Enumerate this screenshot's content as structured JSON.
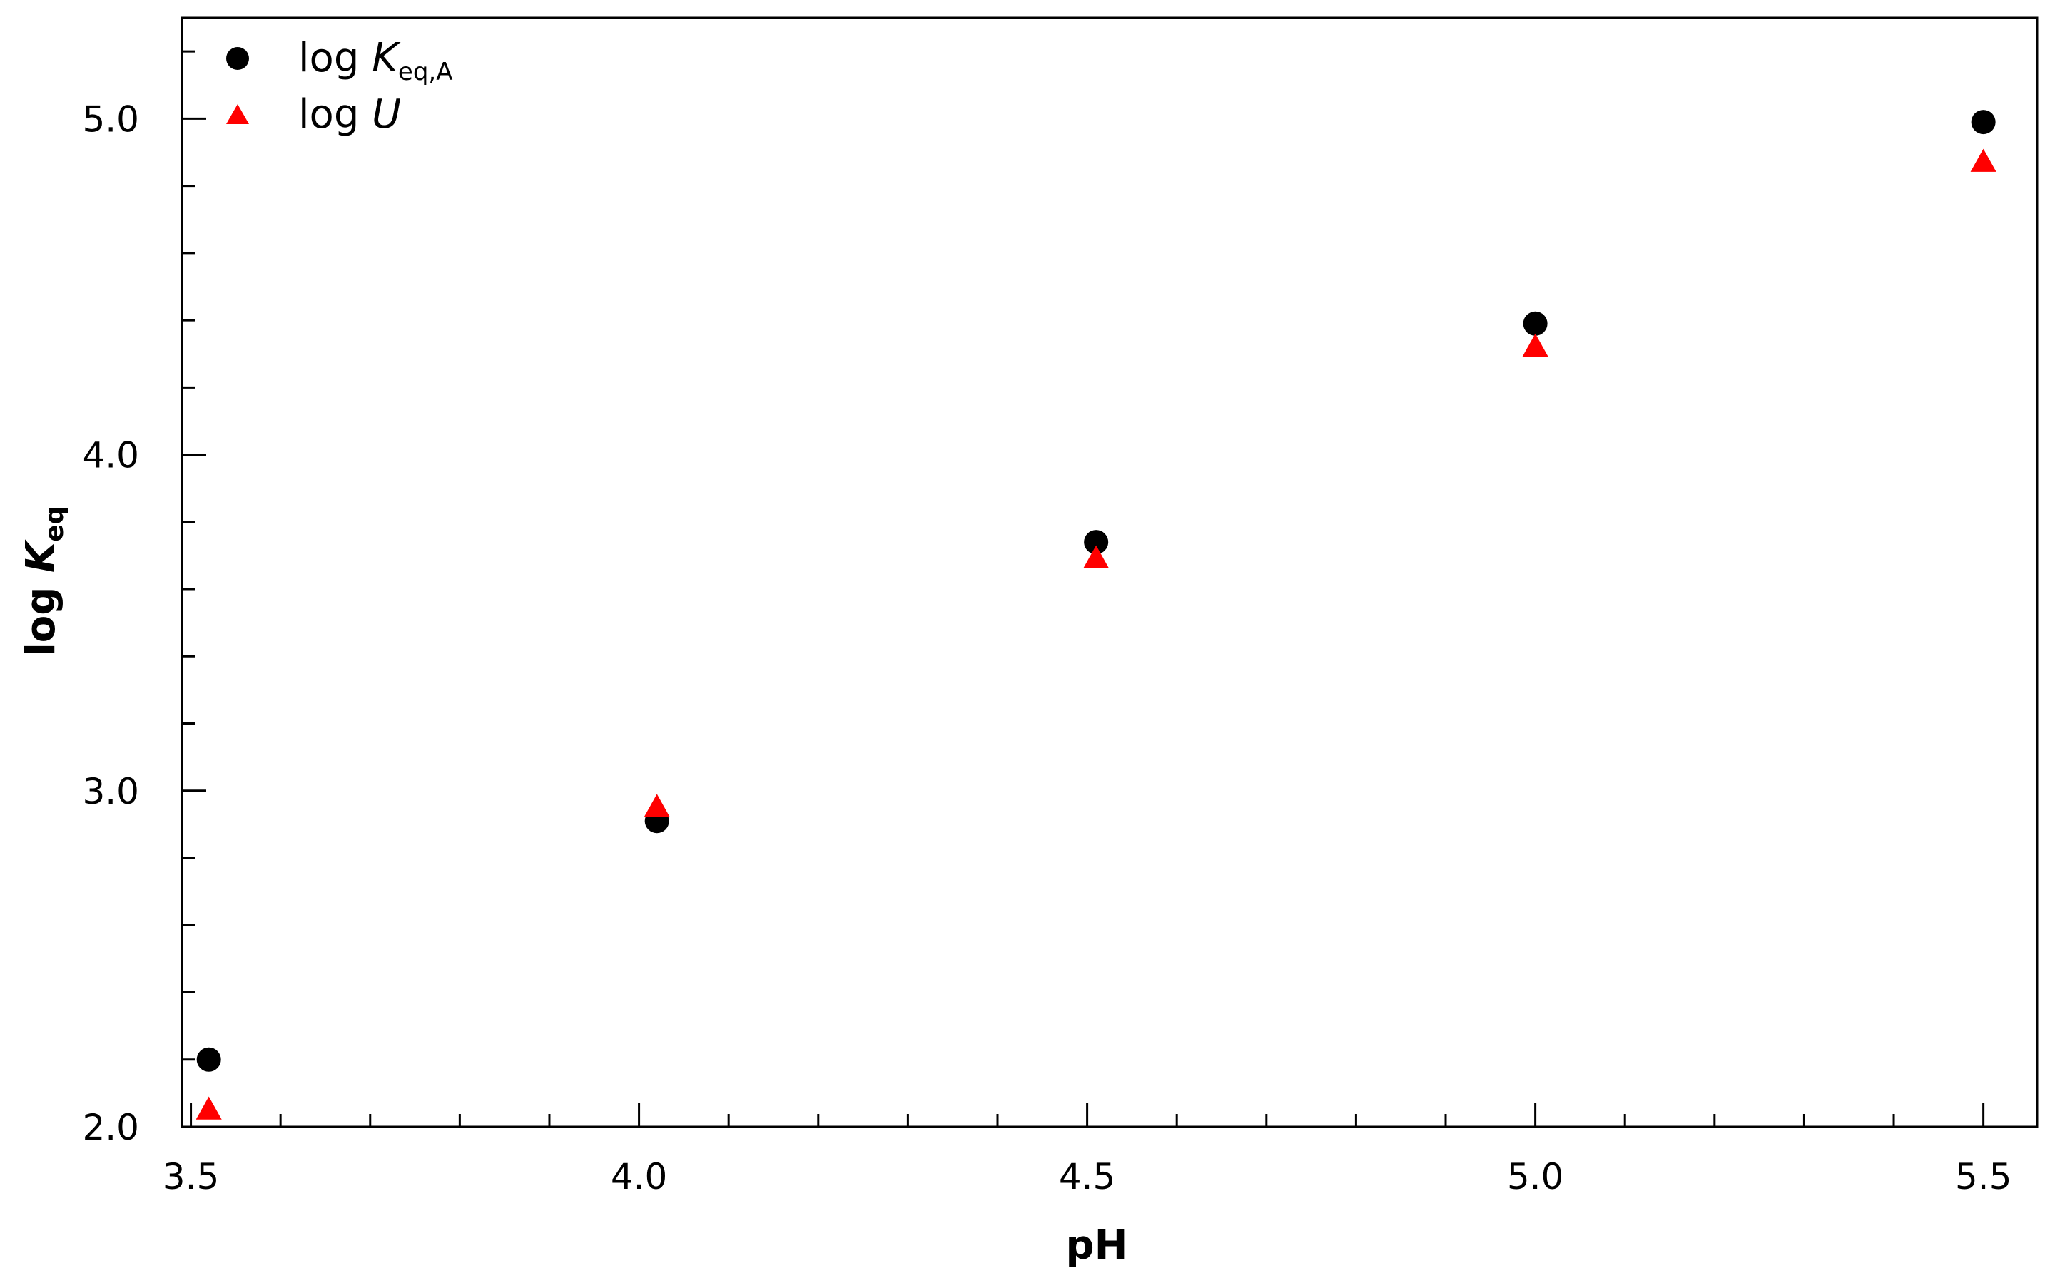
{
  "chart_data": {
    "type": "scatter",
    "xlabel": "pH",
    "ylabel": {
      "main": "log ",
      "italic": "K",
      "sub": "eq"
    },
    "xlim": [
      3.49,
      5.56
    ],
    "ylim": [
      2.0,
      5.3
    ],
    "x_ticks": [
      3.5,
      4.0,
      4.5,
      5.0,
      5.5
    ],
    "x_tick_labels": [
      "3.5",
      "4.0",
      "4.5",
      "5.0",
      "5.5"
    ],
    "x_minor_step": 0.1,
    "y_ticks": [
      2.0,
      3.0,
      4.0,
      5.0
    ],
    "y_tick_labels": [
      "2.0",
      "3.0",
      "4.0",
      "5.0"
    ],
    "y_minor_step": 0.2,
    "grid": false,
    "legend_position": "top-left",
    "series": [
      {
        "legend": {
          "main": "log ",
          "italic": "K",
          "sub": "eq,A"
        },
        "marker": "circle",
        "color": "#000000",
        "x": [
          3.52,
          4.02,
          4.51,
          5.0,
          5.5
        ],
        "y": [
          2.2,
          2.91,
          3.74,
          4.39,
          4.99
        ]
      },
      {
        "legend": {
          "main": "log ",
          "italic": "U",
          "sub": ""
        },
        "marker": "triangle",
        "color": "#ff0000",
        "x": [
          3.52,
          4.02,
          4.51,
          5.0,
          5.5
        ],
        "y": [
          2.05,
          2.95,
          3.69,
          4.32,
          4.87
        ]
      }
    ]
  }
}
